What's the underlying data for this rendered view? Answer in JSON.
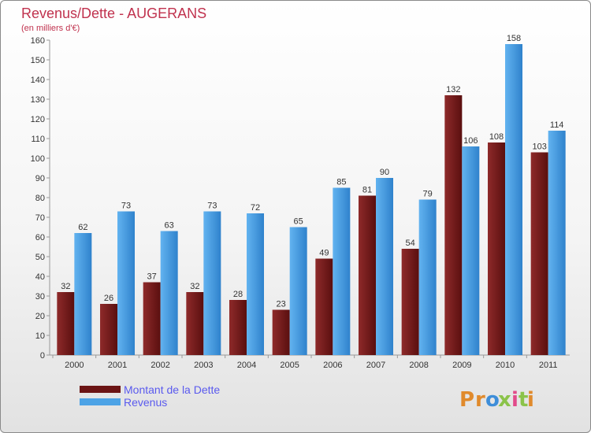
{
  "chart_data": {
    "type": "bar",
    "title": "Revenus/Dette - AUGERANS",
    "subtitle": "(en milliers d'€)",
    "categories": [
      "2000",
      "2001",
      "2002",
      "2003",
      "2004",
      "2005",
      "2006",
      "2007",
      "2008",
      "2009",
      "2010",
      "2011"
    ],
    "series": [
      {
        "name": "Montant de la Dette",
        "values": [
          32,
          26,
          37,
          32,
          28,
          23,
          49,
          81,
          54,
          132,
          108,
          103
        ],
        "color": "#7b1e1e"
      },
      {
        "name": "Revenus",
        "values": [
          62,
          73,
          63,
          73,
          72,
          65,
          85,
          90,
          79,
          106,
          158,
          114
        ],
        "color": "#4da3e6"
      }
    ],
    "ylim": [
      0,
      160
    ],
    "yticks": [
      0,
      10,
      20,
      30,
      40,
      50,
      60,
      70,
      80,
      90,
      100,
      110,
      120,
      130,
      140,
      150,
      160
    ],
    "grid": false,
    "legend": "bottom-left"
  },
  "branding": {
    "logo_text": "Proxiti",
    "logo_letters": [
      "P",
      "r",
      "o",
      "x",
      "i",
      "t",
      "i"
    ],
    "logo_colors": [
      "#e08a2c",
      "#e08a2c",
      "#3e8ed9",
      "#8bc34a",
      "#e24a8a",
      "#8bc34a",
      "#e08a2c"
    ]
  }
}
